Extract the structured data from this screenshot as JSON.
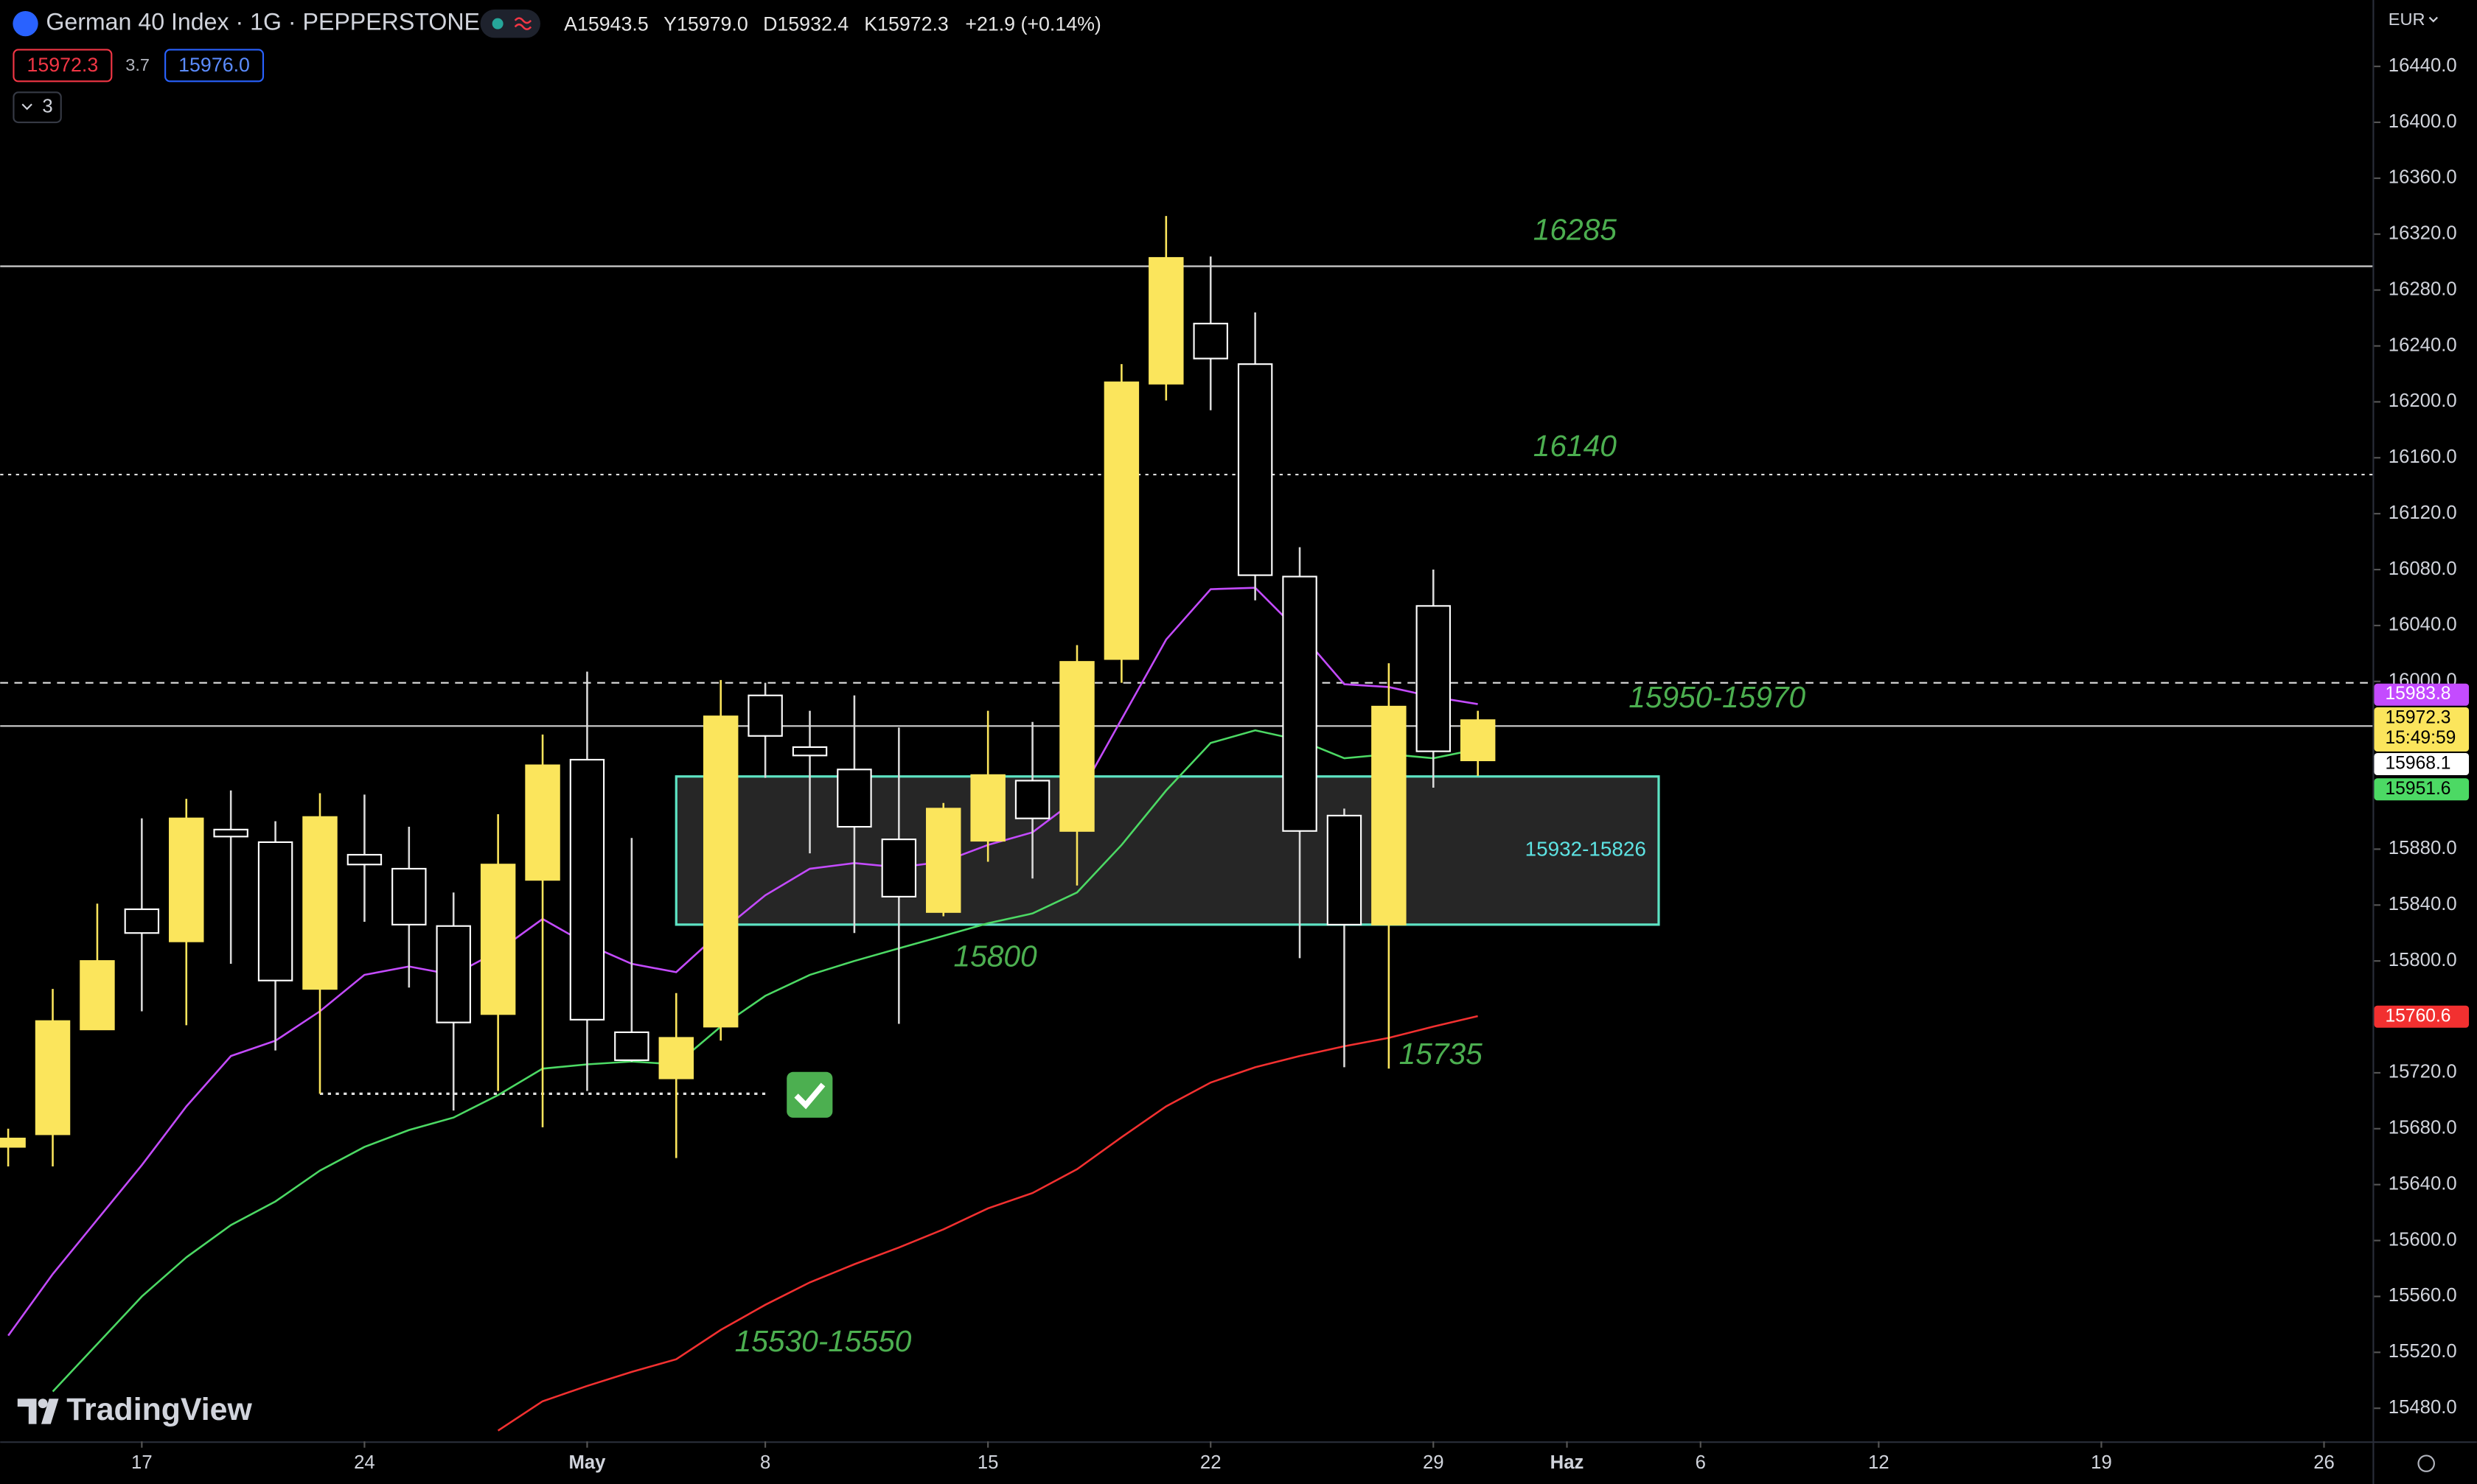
{
  "chart_data": {
    "type": "candlestick",
    "title": "German 40 Index · 1G · PEPPERSTONE",
    "ohlc_header": [
      "A15943.5",
      "Y15979.0",
      "D15932.4",
      "K15972.3",
      "+21.9 (+0.14%)"
    ],
    "trade_panel": {
      "sell": "15972.3",
      "spread": "3.7",
      "buy": "15976.0",
      "indicators": "3"
    },
    "currency": "EUR",
    "countdown": "15:49:59",
    "watermark": "TradingView",
    "up_color": "#fbe55c",
    "down_color": "#ffffff",
    "open": [
      15667,
      15676,
      15751,
      15837,
      15814,
      15894,
      15885,
      15780,
      15876,
      15866,
      15825,
      15762,
      15858,
      15944,
      15749,
      15716,
      15753,
      15990,
      15953,
      15937,
      15887,
      15835,
      15886,
      15929,
      15893,
      16016,
      16213,
      16256,
      16227,
      16075,
      15904,
      15826,
      16054,
      15943.5
    ],
    "high": [
      15680,
      15780,
      15841,
      15902,
      15916,
      15922,
      15900,
      15920,
      15919,
      15896,
      15849,
      15905,
      15962,
      16007,
      15888,
      15777,
      16001,
      15999,
      15979,
      15990,
      15967,
      15913,
      15979,
      15971,
      16026,
      16227,
      16333,
      16304,
      16264,
      16096,
      15909,
      16013,
      16080,
      15979
    ],
    "low": [
      15653,
      15653,
      15751,
      15764,
      15754,
      15798,
      15736,
      15705,
      15828,
      15781,
      15693,
      15707,
      15681,
      15707,
      15728,
      15659,
      15743,
      15931,
      15877,
      15820,
      15755,
      15832,
      15871,
      15859,
      15854,
      15999,
      16201,
      16194,
      16058,
      15802,
      15724,
      15723,
      15924,
      15932.4
    ],
    "close": [
      15673,
      15757,
      15800,
      15820,
      15902,
      15889,
      15786,
      15903,
      15869,
      15826,
      15756,
      15869,
      15940,
      15758,
      15729,
      15745,
      15975,
      15961,
      15947,
      15896,
      15846,
      15909,
      15933,
      15902,
      16014,
      16214,
      16303,
      16231,
      16076,
      15893,
      15826,
      15982,
      15950,
      15972.3
    ],
    "series": [
      {
        "color": "#c44bff",
        "values": [
          15532,
          15576,
          15615,
          15654,
          15696,
          15732,
          15743,
          15764,
          15790,
          15796,
          15790,
          15807,
          15830,
          15812,
          15798,
          15792,
          15821,
          15847,
          15866,
          15870,
          15867,
          15871,
          15883,
          15892,
          15916,
          15973,
          16030,
          16066,
          16067,
          16035,
          15998,
          15996,
          15989,
          15983.8
        ]
      },
      {
        "color": "#4cd964",
        "values": [
          null,
          15492,
          15526,
          15560,
          15588,
          15611,
          15628,
          15650,
          15667,
          15679,
          15688,
          15704,
          15723,
          15726,
          15728,
          15726,
          15753,
          15775,
          15790,
          15800,
          15809,
          15818,
          15827,
          15834,
          15849,
          15883,
          15922,
          15956,
          15965,
          15958,
          15945,
          15948,
          15945,
          15951.6
        ]
      },
      {
        "color": "#f23030",
        "values": [
          null,
          null,
          null,
          null,
          null,
          null,
          null,
          null,
          null,
          null,
          null,
          15464,
          15485,
          15496,
          15506,
          15515,
          15536,
          15554,
          15570,
          15583,
          15595,
          15608,
          15623,
          15634,
          15651,
          15674,
          15696,
          15713,
          15724,
          15732,
          15739,
          15745,
          15753,
          15760.6
        ]
      }
    ],
    "xlim": [
      -0.18,
      53.09
    ],
    "xticks": [
      {
        "value": 3,
        "label": "17"
      },
      {
        "value": 8,
        "label": "24"
      },
      {
        "value": 13,
        "label": "May"
      },
      {
        "value": 17,
        "label": "8"
      },
      {
        "value": 22,
        "label": "15"
      },
      {
        "value": 27,
        "label": "22"
      },
      {
        "value": 32,
        "label": "29"
      },
      {
        "value": 35,
        "label": "Haz"
      },
      {
        "value": 38,
        "label": "6"
      },
      {
        "value": 42,
        "label": "12"
      },
      {
        "value": 47,
        "label": "19"
      },
      {
        "value": 52,
        "label": "26"
      }
    ],
    "ylim": [
      15456.3,
      16487.5
    ],
    "yticks": [
      {
        "value": 15480,
        "label": "15480.0"
      },
      {
        "value": 15520,
        "label": "15520.0"
      },
      {
        "value": 15560,
        "label": "15560.0"
      },
      {
        "value": 15600,
        "label": "15600.0"
      },
      {
        "value": 15640,
        "label": "15640.0"
      },
      {
        "value": 15680,
        "label": "15680.0"
      },
      {
        "value": 15720,
        "label": "15720.0"
      },
      {
        "value": 15760,
        "label": "15760.0"
      },
      {
        "value": 15800,
        "label": "15800.0"
      },
      {
        "value": 15840,
        "label": "15840.0"
      },
      {
        "value": 15880,
        "label": "15880.0"
      },
      {
        "value": 15920,
        "label": "15920.0"
      },
      {
        "value": 15960,
        "label": "15960.0"
      },
      {
        "value": 16000,
        "label": "16000.0"
      },
      {
        "value": 16040,
        "label": "16040.0"
      },
      {
        "value": 16080,
        "label": "16080.0"
      },
      {
        "value": 16120,
        "label": "16120.0"
      },
      {
        "value": 16160,
        "label": "16160.0"
      },
      {
        "value": 16200,
        "label": "16200.0"
      },
      {
        "value": 16240,
        "label": "16240.0"
      },
      {
        "value": 16280,
        "label": "16280.0"
      },
      {
        "value": 16320,
        "label": "16320.0"
      },
      {
        "value": 16360,
        "label": "16360.0"
      },
      {
        "value": 16400,
        "label": "16400.0"
      },
      {
        "value": 16440,
        "label": "16440.0"
      }
    ],
    "hlines": [
      {
        "value": 16297,
        "style": "solid"
      },
      {
        "value": 16148,
        "style": "dotted"
      },
      {
        "value": 15999,
        "style": "dashed"
      },
      {
        "value": 15968.1,
        "style": "solid"
      }
    ],
    "segments": [
      {
        "value": 15705,
        "from": 7,
        "to": 17
      }
    ],
    "zone": {
      "label": "15932-15826",
      "low": 15826,
      "high": 15932,
      "from": 15,
      "to": 37.06
    },
    "annotations": [
      "16285",
      "16140",
      "15950-15970",
      "15800",
      "15735",
      "15530-15550"
    ]
  }
}
